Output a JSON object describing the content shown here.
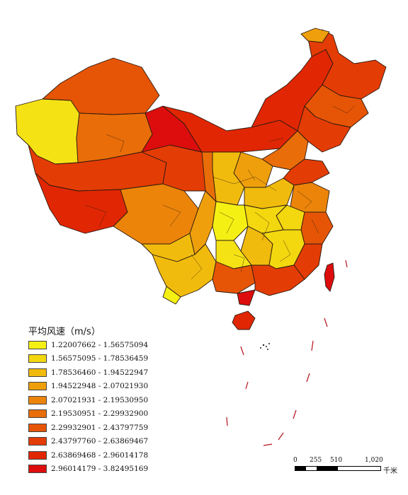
{
  "legend": {
    "title": "平均风速（m/s）",
    "classes": [
      {
        "label": "1.22007662 - 1.56575094",
        "color": "#f5f013"
      },
      {
        "label": "1.56575095 - 1.78536459",
        "color": "#f3d70f"
      },
      {
        "label": "1.78536460 - 1.94522947",
        "color": "#f1bb0d"
      },
      {
        "label": "1.94522948 - 2.07021930",
        "color": "#ee9f0b"
      },
      {
        "label": "2.07021931 - 2.19530950",
        "color": "#ec8409"
      },
      {
        "label": "2.19530951 - 2.29932900",
        "color": "#e96d08"
      },
      {
        "label": "2.29932901 - 2.43797759",
        "color": "#e65506"
      },
      {
        "label": "2.43797760 - 2.63869467",
        "color": "#e43c05"
      },
      {
        "label": "2.63869468 - 2.96014178",
        "color": "#e12603"
      },
      {
        "label": "2.96014179 - 3.82495169",
        "color": "#dd0d0d"
      }
    ]
  },
  "scale": {
    "ticks": [
      "0",
      "255",
      "510",
      "1,020"
    ],
    "unit": "千米"
  }
}
